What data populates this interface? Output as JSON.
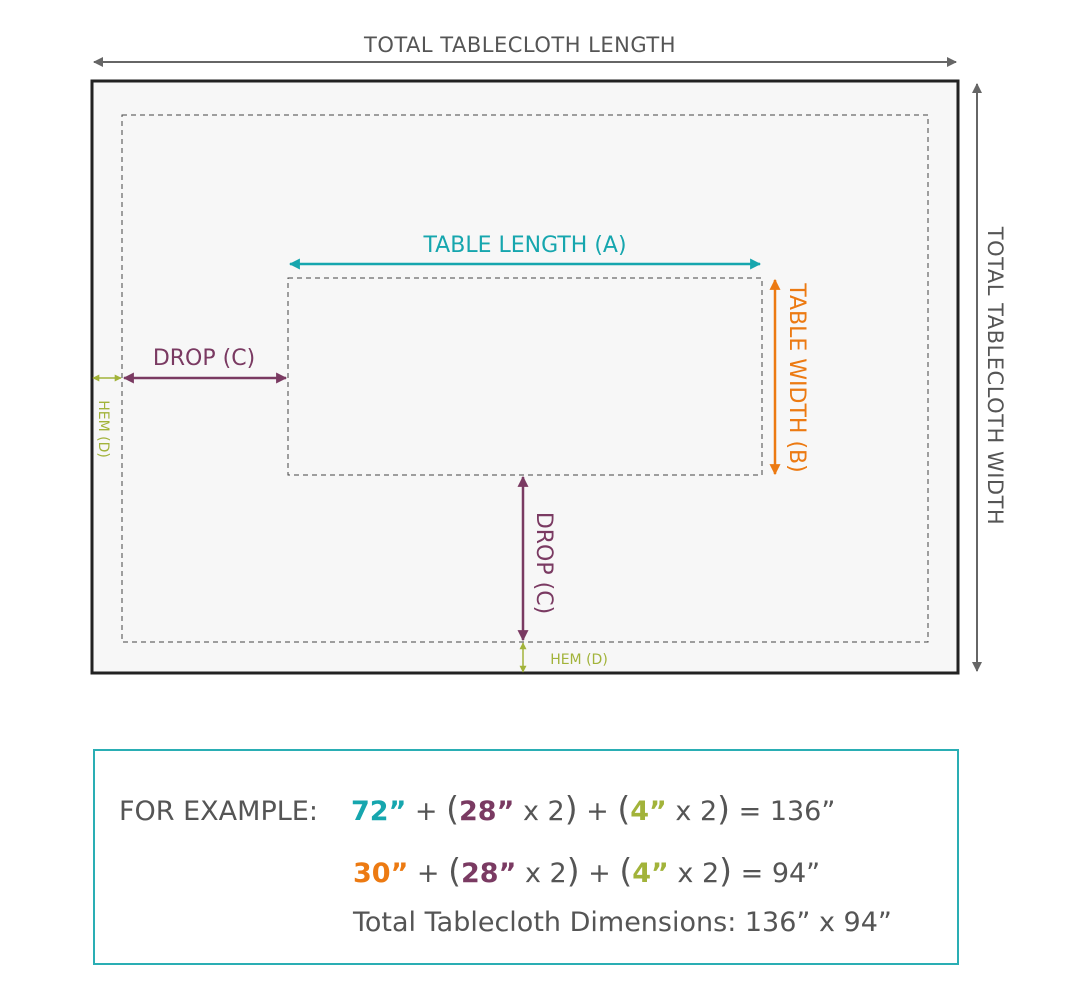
{
  "diagram": {
    "total_length_label": "TOTAL TABLECLOTH LENGTH",
    "total_width_label": "TOTAL TABLECLOTH WIDTH",
    "table_length_label": "TABLE LENGTH (A)",
    "table_width_label": "TABLE WIDTH (B)",
    "drop_label": "DROP (C)",
    "hem_label": "HEM (D)"
  },
  "example": {
    "prefix": "FOR EXAMPLE:",
    "length_value": "72”",
    "width_value": "30”",
    "drop_value": "28”",
    "hem_value": "4”",
    "plus": "+",
    "open_paren": "(",
    "close_paren": ")",
    "times_two": "x 2",
    "length_result": "= 136”",
    "width_result": "= 94”",
    "total_line": "Total Tablecloth Dimensions: 136” x 94”"
  },
  "colors": {
    "length": "#16a6ae",
    "width": "#ec7a12",
    "drop": "#7a3a62",
    "hem": "#a2b33a",
    "frame": "#222222",
    "box_border": "#2aaeb4"
  }
}
